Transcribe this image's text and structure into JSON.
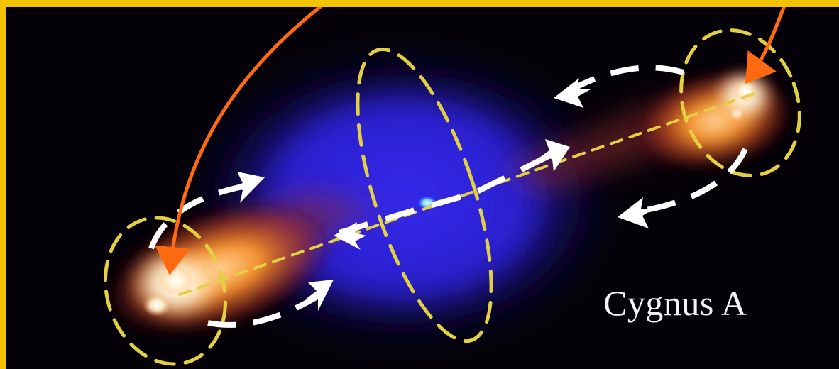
{
  "image": {
    "caption": "Cygnus A",
    "colors": {
      "frame": "#f2c200",
      "background": "#040208",
      "cocoon": "#2a1ed8",
      "lobe": "#ff9a2e",
      "hotspot": "#fff6e8",
      "core": "#7fe0ff",
      "guide_dashes": "#e3d042",
      "flow_arrows": "#ffffff",
      "pointer_arrows": "#ff6a10"
    }
  }
}
